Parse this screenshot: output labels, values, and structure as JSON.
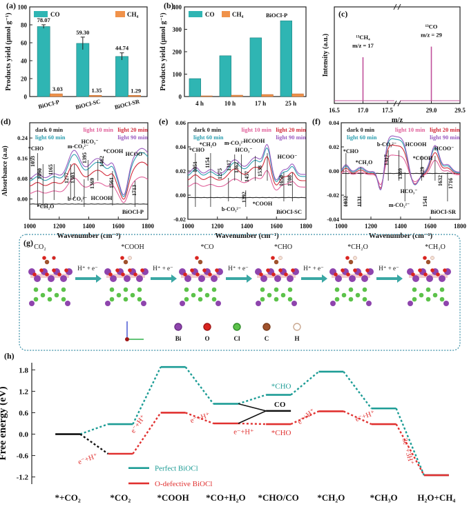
{
  "colors": {
    "co": "#2fb5b3",
    "ch4": "#f0924a",
    "perfect": "#1c9c95",
    "defect": "#e0302f",
    "dark": "#222222",
    "l10": "#e0609a",
    "l20": "#d22a3a",
    "l60": "#2d9fb0",
    "l90": "#9a5cc0",
    "bi": "#8e44ad",
    "o": "#d9241f",
    "cl": "#5cc24a",
    "c": "#a0522d",
    "h": "#f4e2d2"
  },
  "chart_data": [
    {
      "id": "a",
      "panel_label": "(a)",
      "type": "bar",
      "categories": [
        "BiOCl-P",
        "BiOCl-SC",
        "BiOCl-SR"
      ],
      "series": [
        {
          "name": "CO",
          "values": [
            78.07,
            59.3,
            44.74
          ],
          "errors": [
            2,
            7,
            4
          ]
        },
        {
          "name": "CH4",
          "values": [
            3.03,
            1.35,
            1.29
          ]
        }
      ],
      "data_labels": [
        [
          "78.07",
          "59.30",
          "44.74"
        ],
        [
          "3.03",
          "1.35",
          "1.29"
        ]
      ],
      "legend": [
        "CO",
        "CH₄"
      ],
      "ylabel": "Products yield (μmol g⁻¹)",
      "ylim": [
        0,
        100
      ],
      "yticks": [
        "0",
        "20",
        "40",
        "60",
        "80",
        "100"
      ]
    },
    {
      "id": "b",
      "panel_label": "(b)",
      "type": "bar",
      "annotation": "BiOCl-P",
      "categories": [
        "4 h",
        "10 h",
        "17 h",
        "25 h"
      ],
      "series": [
        {
          "name": "CO",
          "values": [
            80,
            182,
            262,
            338
          ]
        },
        {
          "name": "CH4",
          "values": [
            3,
            6,
            9,
            12
          ]
        }
      ],
      "legend": [
        "CO",
        "CH₄"
      ],
      "ylabel": "Products yield (μmol g⁻¹)",
      "ylim": [
        0,
        400
      ],
      "yticks": [
        "0",
        "100",
        "200",
        "300",
        "400"
      ]
    },
    {
      "id": "c",
      "panel_label": "(c)",
      "type": "line",
      "xlabel": "m/z",
      "ylabel": "Intensity (a.u.)",
      "xticks": [
        "16.5",
        "17.0",
        "17.5",
        "29.0",
        "29.5"
      ],
      "peaks": [
        {
          "x": 17.0,
          "label1": "¹³CH₄",
          "label2": "m/z = 17",
          "height": 0.45
        },
        {
          "x": 29.0,
          "label1": "¹³CO",
          "label2": "m/z = 29",
          "height": 0.56
        }
      ]
    },
    {
      "id": "d",
      "panel_label": "(d)",
      "type": "line",
      "sample": "BiOCl-P",
      "xlabel": "Wavenumber (cm⁻¹)",
      "ylabel": "Absorbance (a.u)",
      "xlim": [
        1000,
        1800
      ],
      "ylim": [
        -0.08,
        0.3
      ],
      "xticks": [
        "1000",
        "1200",
        "1400",
        "1600",
        "1800"
      ],
      "yticks": [
        "0.00",
        "0.08",
        "0.16",
        "0.24"
      ],
      "legend": [
        "dark 0 min",
        "light 10 min",
        "light 20 min",
        "light 60 min",
        "light 90 min"
      ],
      "annotations": [
        "*CHO",
        "1053",
        "1090",
        "1165",
        "*CH₂O",
        "m-CO₃²⁻",
        "1277",
        "1303",
        "b-CO₃²⁻",
        "HCO₃⁻",
        "1395",
        "1369",
        "1462",
        "HCOOH",
        "*COOH",
        "1561",
        "1713",
        "HCOO⁻"
      ]
    },
    {
      "id": "e",
      "panel_label": "(e)",
      "type": "line",
      "sample": "BiOCl-SC",
      "xlabel": "Wavenumber (cm⁻¹)",
      "xlim": [
        1000,
        1800
      ],
      "ylim": [
        -0.02,
        0.06
      ],
      "xticks": [
        "1000",
        "1200",
        "1400",
        "1600",
        "1800"
      ],
      "yticks": [
        "-0.02",
        "0.00",
        "0.02",
        "0.04",
        "0.06"
      ],
      "legend": [
        "dark 0 min",
        "light 10 min",
        "light 20 min",
        "light 60 min",
        "light 90 min"
      ],
      "annotations": [
        "*CHO",
        "1051",
        "*CH₂O",
        "1154",
        "1275",
        "m-CO₃²⁻",
        "1317",
        "1362",
        "HCO₃⁻",
        "HCOOH",
        "1457",
        "1538",
        "b-CO₃²⁻",
        "1392",
        "*COOH",
        "HCOO⁻",
        "1650",
        "1708"
      ]
    },
    {
      "id": "f",
      "panel_label": "(f)",
      "type": "line",
      "sample": "BiOCl-SR",
      "xlabel": "Wavenumber (cm⁻¹)",
      "xlim": [
        1000,
        1800
      ],
      "ylim": [
        -0.04,
        0.04
      ],
      "xticks": [
        "1000",
        "1200",
        "1400",
        "1600",
        "1800"
      ],
      "yticks": [
        "-0.04",
        "-0.02",
        "0.00",
        "0.02",
        "0.04"
      ],
      "legend": [
        "dark 0 min",
        "light 10 min",
        "light 20 min",
        "light 60 min",
        "light 90 min"
      ],
      "annotations": [
        "*CHO",
        "*CH₂O",
        "1032",
        "1131",
        "b-CO₃²⁻",
        "1317",
        "HCOOH",
        "1389",
        "m-CO₃²⁻",
        "HCO₃⁻",
        "1429",
        "*COOH",
        "1541",
        "HCOO⁻",
        "1632",
        "1716"
      ]
    },
    {
      "id": "h",
      "panel_label": "(h)",
      "type": "line",
      "ylabel": "Free energy (eV)",
      "ylim": [
        -1.4,
        2.0
      ],
      "yticks": [
        "-1.2",
        "-0.6",
        "0.0",
        "0.6",
        "1.2",
        "1.8"
      ],
      "categories": [
        "*+CO₂",
        "*CO₂",
        "*COOH",
        "*CO+H₂O",
        "*CHO/CO",
        "*CH₂O",
        "*CH₃O",
        "H₂O+CH₄"
      ],
      "series": [
        {
          "name": "Perfect BiOCl",
          "values": [
            0.0,
            0.28,
            1.88,
            0.85,
            1.1,
            1.75,
            0.72,
            -1.15
          ],
          "branch_label": "*CHO",
          "alt_label": "CO",
          "alt_value": 0.65
        },
        {
          "name": "O-defective BiOCl",
          "values": [
            0.0,
            -0.55,
            0.6,
            0.3,
            0.28,
            0.64,
            0.28,
            -1.15
          ],
          "branch_label": "*CHO"
        }
      ],
      "step_labels": [
        "e⁻+H⁺",
        "e⁻+H⁺",
        "e⁻+H⁺",
        "e⁻+H⁺",
        "e⁻+H⁺",
        "e⁻+H⁺",
        "3e⁻+3H⁺"
      ],
      "legend": [
        "Perfect BiOCl",
        "O-defective BiOCl"
      ]
    }
  ],
  "scheme": {
    "panel_label": "(g)",
    "species": [
      "CO₂",
      "*COOH",
      "*CO",
      "*CHO",
      "*CH₂O",
      "*CH₃O"
    ],
    "step": "H⁺ + e⁻",
    "legend": [
      "Bi",
      "O",
      "Cl",
      "C",
      "H"
    ]
  }
}
